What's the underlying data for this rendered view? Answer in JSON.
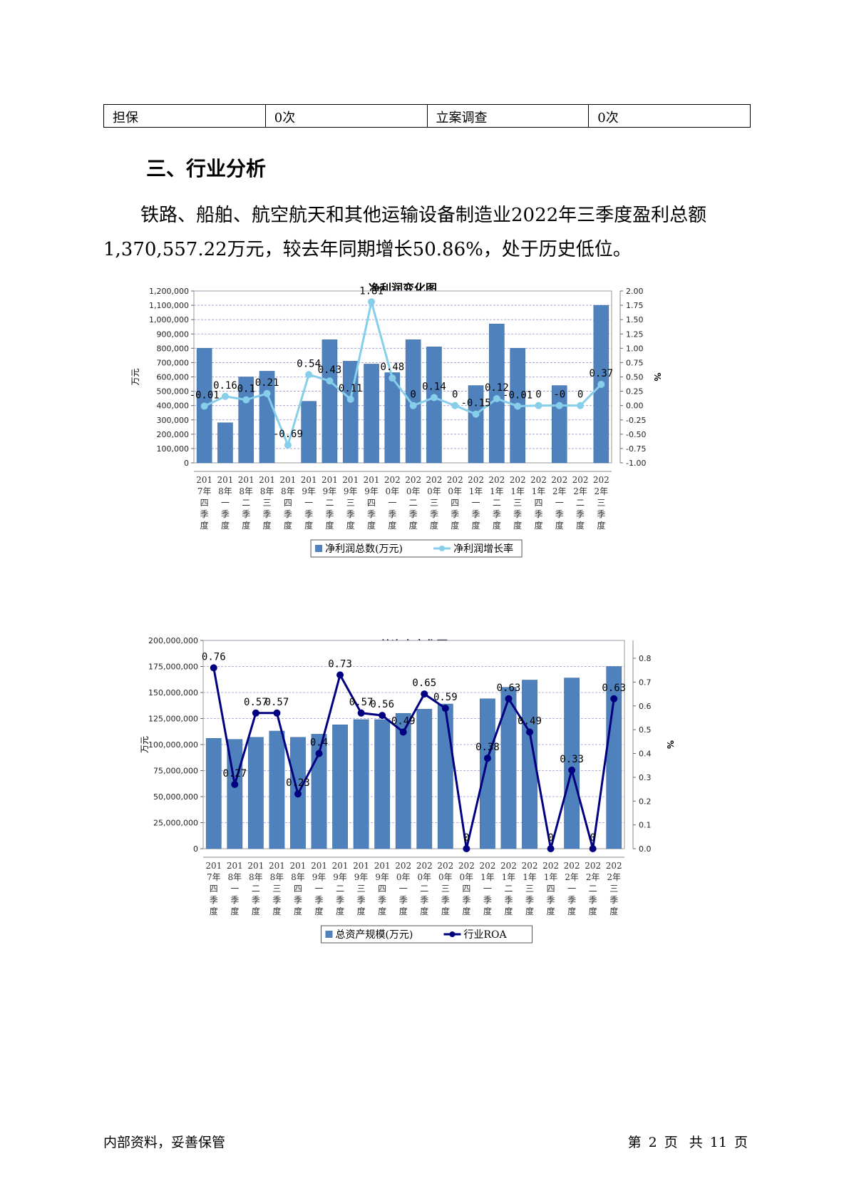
{
  "table": {
    "rows": [
      [
        "担保",
        "0次",
        "立案调查",
        "0次"
      ]
    ]
  },
  "section": {
    "title": "三、行业分析",
    "paragraph": "铁路、船舶、航空航天和其他运输设备制造业2022年三季度盈利总额1,370,557.22万元，较去年同期增长50.86%，处于历史低位。"
  },
  "footer": {
    "left": "内部资料，妥善保管",
    "page_prefix": "第",
    "page_num": "2",
    "page_unit": "页",
    "total_prefix": "共",
    "total_num": "11",
    "total_unit": "页"
  },
  "colors": {
    "bar": "#4f81bd",
    "line1": "#87ceeb",
    "line2": "#000080",
    "grid": "#9999cc"
  },
  "chart_data": [
    {
      "type": "bar+line",
      "title": "净利润变化图",
      "ylabel_left": "万元",
      "ylabel_right": "%",
      "ylim_left": [
        0,
        1200000
      ],
      "ylim_right": [
        -1.0,
        2.0
      ],
      "yticks_left": [
        "0",
        "100,000",
        "200,000",
        "300,000",
        "400,000",
        "500,000",
        "600,000",
        "700,000",
        "800,000",
        "900,000",
        "1,000,000",
        "1,100,000",
        "1,200,000"
      ],
      "yticks_right": [
        "-1.00",
        "-0.75",
        "-0.50",
        "-0.25",
        "0.00",
        "0.25",
        "0.50",
        "0.75",
        "1.00",
        "1.25",
        "1.50",
        "1.75",
        "2.00"
      ],
      "categories": [
        [
          "201",
          "7年",
          "四",
          "季",
          "度"
        ],
        [
          "201",
          "8年",
          "一",
          "季",
          "度"
        ],
        [
          "201",
          "8年",
          "二",
          "季",
          "度"
        ],
        [
          "201",
          "8年",
          "三",
          "季",
          "度"
        ],
        [
          "201",
          "8年",
          "四",
          "季",
          "度"
        ],
        [
          "201",
          "9年",
          "一",
          "季",
          "度"
        ],
        [
          "201",
          "9年",
          "二",
          "季",
          "度"
        ],
        [
          "201",
          "9年",
          "三",
          "季",
          "度"
        ],
        [
          "201",
          "9年",
          "四",
          "季",
          "度"
        ],
        [
          "202",
          "0年",
          "一",
          "季",
          "度"
        ],
        [
          "202",
          "0年",
          "二",
          "季",
          "度"
        ],
        [
          "202",
          "0年",
          "三",
          "季",
          "度"
        ],
        [
          "202",
          "0年",
          "四",
          "季",
          "度"
        ],
        [
          "202",
          "1年",
          "一",
          "季",
          "度"
        ],
        [
          "202",
          "1年",
          "二",
          "季",
          "度"
        ],
        [
          "202",
          "1年",
          "三",
          "季",
          "度"
        ],
        [
          "202",
          "1年",
          "四",
          "季",
          "度"
        ],
        [
          "202",
          "2年",
          "一",
          "季",
          "度"
        ],
        [
          "202",
          "2年",
          "二",
          "季",
          "度"
        ],
        [
          "202",
          "2年",
          "三",
          "季",
          "度"
        ]
      ],
      "bar_series": {
        "name": "净利润总数(万元)",
        "values": [
          800000,
          280000,
          600000,
          640000,
          0,
          430000,
          860000,
          710000,
          690000,
          630000,
          860000,
          810000,
          0,
          540000,
          970000,
          800000,
          0,
          540000,
          0,
          1100000
        ]
      },
      "line_series": {
        "name": "净利润增长率",
        "values": [
          -0.01,
          0.16,
          0.1,
          0.21,
          -0.69,
          0.54,
          0.43,
          0.11,
          1.81,
          0.48,
          0,
          0.14,
          0,
          -0.15,
          0.12,
          -0.01,
          0,
          0,
          0,
          0.37
        ],
        "labels": [
          "-0.01",
          "0.16",
          "0.1",
          "0.21",
          "-0.69",
          "0.54",
          "0.43",
          "0.11",
          "1.81",
          "0.48",
          "0",
          "0.14",
          "0",
          "-0.15",
          "0.12",
          "-0.01",
          "0",
          "-0",
          "0",
          "0.37"
        ]
      },
      "grid": true,
      "legend": "bottom"
    },
    {
      "type": "bar+line",
      "title": "总资产变化图",
      "ylabel_left": "万元",
      "ylabel_right": "%",
      "ylim_left": [
        0,
        200000000
      ],
      "ylim_right": [
        0,
        0.875
      ],
      "yticks_left": [
        "0",
        "25,000,000",
        "50,000,000",
        "75,000,000",
        "100,000,000",
        "125,000,000",
        "150,000,000",
        "175,000,000",
        "200,000,000"
      ],
      "yticks_right": [
        "0.0",
        "0.1",
        "0.2",
        "0.3",
        "0.4",
        "0.5",
        "0.6",
        "0.7",
        "0.8"
      ],
      "categories": [
        [
          "201",
          "7年",
          "四",
          "季",
          "度"
        ],
        [
          "201",
          "8年",
          "一",
          "季",
          "度"
        ],
        [
          "201",
          "8年",
          "二",
          "季",
          "度"
        ],
        [
          "201",
          "8年",
          "三",
          "季",
          "度"
        ],
        [
          "201",
          "8年",
          "四",
          "季",
          "度"
        ],
        [
          "201",
          "9年",
          "一",
          "季",
          "度"
        ],
        [
          "201",
          "9年",
          "二",
          "季",
          "度"
        ],
        [
          "201",
          "9年",
          "三",
          "季",
          "度"
        ],
        [
          "201",
          "9年",
          "四",
          "季",
          "度"
        ],
        [
          "202",
          "0年",
          "一",
          "季",
          "度"
        ],
        [
          "202",
          "0年",
          "二",
          "季",
          "度"
        ],
        [
          "202",
          "0年",
          "三",
          "季",
          "度"
        ],
        [
          "202",
          "0年",
          "四",
          "季",
          "度"
        ],
        [
          "202",
          "1年",
          "一",
          "季",
          "度"
        ],
        [
          "202",
          "1年",
          "二",
          "季",
          "度"
        ],
        [
          "202",
          "1年",
          "三",
          "季",
          "度"
        ],
        [
          "202",
          "1年",
          "四",
          "季",
          "度"
        ],
        [
          "202",
          "2年",
          "一",
          "季",
          "度"
        ],
        [
          "202",
          "2年",
          "二",
          "季",
          "度"
        ],
        [
          "202",
          "2年",
          "三",
          "季",
          "度"
        ]
      ],
      "bar_series": {
        "name": "总资产规模(万元)",
        "values": [
          106000000,
          105000000,
          107000000,
          113000000,
          107000000,
          110000000,
          119000000,
          124000000,
          124000000,
          130000000,
          134000000,
          139000000,
          0,
          144000000,
          155000000,
          162000000,
          0,
          164000000,
          0,
          175000000
        ]
      },
      "line_series": {
        "name": "行业ROA",
        "values": [
          0.76,
          0.27,
          0.57,
          0.57,
          0.23,
          0.4,
          0.73,
          0.57,
          0.56,
          0.49,
          0.65,
          0.59,
          0,
          0.38,
          0.63,
          0.49,
          0,
          0.33,
          0,
          0.63
        ],
        "labels": [
          "0.76",
          "0.27",
          "0.57",
          "0.57",
          "0.23",
          "0.4",
          "0.73",
          "0.57",
          "0.56",
          "0.49",
          "0.65",
          "0.59",
          "0",
          "0.38",
          "0.63",
          "0.49",
          "0",
          "0.33",
          "0",
          "0.63"
        ]
      },
      "grid": true,
      "legend": "bottom"
    }
  ]
}
